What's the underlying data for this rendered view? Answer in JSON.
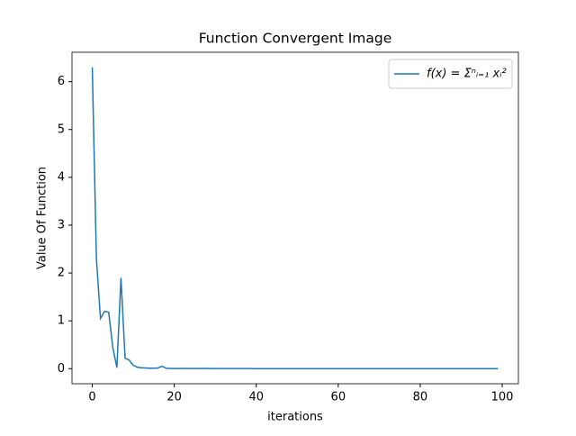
{
  "chart_data": {
    "type": "line",
    "title": "Function Convergent Image",
    "x_label": "iterations",
    "y_label": "Value Of Function",
    "x": [
      0,
      1,
      2,
      3,
      4,
      5,
      6,
      7,
      8,
      9,
      10,
      11,
      12,
      13,
      14,
      15,
      16,
      17,
      18,
      19,
      20,
      21,
      22,
      23,
      24,
      25,
      26,
      27,
      28,
      29,
      30,
      31,
      32,
      33,
      34,
      35,
      36,
      37,
      38,
      39,
      40,
      41,
      42,
      43,
      44,
      45,
      46,
      47,
      48,
      49,
      50,
      51,
      52,
      53,
      54,
      55,
      56,
      57,
      58,
      59,
      60,
      61,
      62,
      63,
      64,
      65,
      66,
      67,
      68,
      69,
      70,
      71,
      72,
      73,
      74,
      75,
      76,
      77,
      78,
      79,
      80,
      81,
      82,
      83,
      84,
      85,
      86,
      87,
      88,
      89,
      90,
      91,
      92,
      93,
      94,
      95,
      96,
      97,
      98,
      99
    ],
    "series": [
      {
        "name": "f(x) = Σⁿᵢ₌₁ xᵢ²",
        "color": "#1f77b4",
        "values": [
          6.3,
          2.3,
          1.05,
          1.2,
          1.18,
          0.45,
          0.02,
          1.9,
          0.22,
          0.18,
          0.07,
          0.03,
          0.02,
          0.015,
          0.01,
          0.01,
          0.015,
          0.05,
          0.01,
          0.005,
          0.005,
          0.003,
          0.005,
          0.004,
          0.005,
          0.003,
          0.004,
          0.006,
          0.004,
          0.003,
          0.003,
          0.002,
          0.002,
          0.002,
          0.002,
          0.002,
          0.002,
          0.002,
          0.002,
          0.002,
          0.001,
          0.001,
          0.001,
          0.001,
          0.001,
          0.001,
          0.001,
          0.001,
          0.001,
          0.001,
          0.001,
          0.001,
          0.001,
          0.001,
          0.001,
          0.001,
          0.001,
          0.001,
          0.001,
          0.001,
          0.001,
          0.001,
          0.001,
          0.001,
          0.001,
          0.001,
          0.001,
          0.001,
          0.001,
          0.001,
          0.001,
          0.001,
          0.001,
          0.001,
          0.001,
          0.001,
          0.001,
          0.001,
          0.001,
          0.001,
          0.001,
          0.001,
          0.001,
          0.001,
          0.001,
          0.001,
          0.001,
          0.001,
          0.001,
          0.001,
          0.001,
          0.001,
          0.001,
          0.001,
          0.001,
          0.001,
          0.001,
          0.001,
          0.001,
          0.001
        ]
      }
    ],
    "xlim": [
      -4.95,
      103.95
    ],
    "xticks": [
      0,
      20,
      40,
      60,
      80,
      100
    ],
    "ylim": [
      -0.315,
      6.615
    ],
    "yticks": [
      0,
      1,
      2,
      3,
      4,
      5,
      6
    ],
    "legend": "upper right"
  }
}
